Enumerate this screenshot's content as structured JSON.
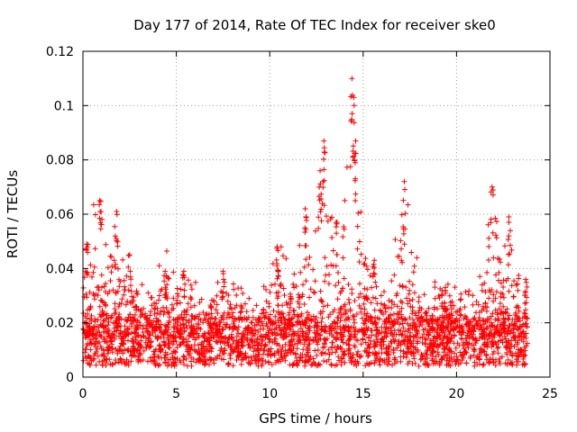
{
  "chart_data": {
    "type": "scatter",
    "title": "Day 177 of 2014, Rate Of TEC Index for receiver ske0",
    "xlabel": "GPS time / hours",
    "ylabel": "ROTI / TECUs",
    "xlim": [
      0,
      25
    ],
    "ylim": [
      0,
      0.12
    ],
    "xticks": [
      0,
      5,
      10,
      15,
      20,
      25
    ],
    "xtick_labels": [
      "0",
      "5",
      "10",
      "15",
      "20",
      "25"
    ],
    "yticks": [
      0,
      0.02,
      0.04,
      0.06,
      0.08,
      0.1,
      0.12
    ],
    "ytick_labels": [
      "0",
      "0.02",
      "0.04",
      "0.06",
      "0.08",
      "0.1",
      "0.12"
    ],
    "grid": true,
    "marker": "plus",
    "color": "#ff0000",
    "series": [
      {
        "name": "ROTI",
        "description": "dense point cloud, baseline ~0.005-0.03 TECU/s",
        "x_range": [
          0,
          23.8
        ],
        "peaks": [
          {
            "x": 0.2,
            "y": 0.049
          },
          {
            "x": 0.9,
            "y": 0.065
          },
          {
            "x": 1.8,
            "y": 0.061
          },
          {
            "x": 2.5,
            "y": 0.045
          },
          {
            "x": 4.4,
            "y": 0.039
          },
          {
            "x": 5.4,
            "y": 0.039
          },
          {
            "x": 7.5,
            "y": 0.039
          },
          {
            "x": 10.4,
            "y": 0.048
          },
          {
            "x": 11.9,
            "y": 0.062
          },
          {
            "x": 12.7,
            "y": 0.076
          },
          {
            "x": 12.9,
            "y": 0.087
          },
          {
            "x": 13.6,
            "y": 0.057
          },
          {
            "x": 14.4,
            "y": 0.11
          },
          {
            "x": 14.5,
            "y": 0.103
          },
          {
            "x": 14.6,
            "y": 0.087
          },
          {
            "x": 15.6,
            "y": 0.043
          },
          {
            "x": 17.2,
            "y": 0.072
          },
          {
            "x": 19.4,
            "y": 0.033
          },
          {
            "x": 21.9,
            "y": 0.07
          },
          {
            "x": 22.8,
            "y": 0.059
          },
          {
            "x": 23.7,
            "y": 0.036
          }
        ]
      }
    ]
  }
}
